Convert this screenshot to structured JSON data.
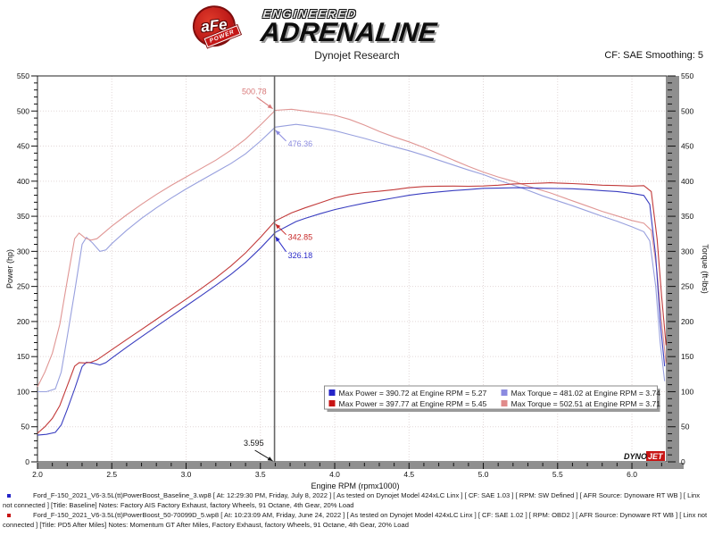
{
  "header": {
    "logo": {
      "badge_text": "aFe",
      "badge_sub": "POWER",
      "line1": "ENGINEERED",
      "line2": "ADRENALINE"
    },
    "subtitle": "Dynojet Research",
    "cf_label": "CF: SAE Smoothing: 5"
  },
  "chart_data": {
    "type": "line",
    "xlabel": "Engine RPM (rpmx1000)",
    "ylabel_left": "Power (hp)",
    "ylabel_right": "Torque (ft-lbs)",
    "xlim": [
      2.0,
      6.234
    ],
    "ylim": [
      0,
      550
    ],
    "x_major_ticks": [
      2.0,
      2.5,
      3.0,
      3.5,
      4.0,
      4.5,
      5.0,
      5.5,
      6.0
    ],
    "x_minor_step": 0.1,
    "y_major_step": 50,
    "y_minor_step": 10,
    "grid": "dotted",
    "grid_color": "#e2d7d7",
    "cursor": {
      "rpm": 3.595,
      "label": "3.595"
    },
    "series": [
      {
        "name": "Baseline Torque",
        "unit": "ft-lbs",
        "color": "#98a0de",
        "x": [
          2.0,
          2.06,
          2.12,
          2.16,
          2.2,
          2.25,
          2.3,
          2.33,
          2.37,
          2.42,
          2.46,
          2.5,
          2.6,
          2.7,
          2.8,
          2.9,
          3.0,
          3.1,
          3.2,
          3.3,
          3.4,
          3.5,
          3.6,
          3.74,
          3.8,
          3.9,
          4.0,
          4.1,
          4.2,
          4.3,
          4.4,
          4.5,
          4.6,
          4.7,
          4.8,
          4.9,
          5.0,
          5.1,
          5.2,
          5.27,
          5.3,
          5.4,
          5.5,
          5.6,
          5.7,
          5.8,
          5.9,
          6.0,
          6.08,
          6.12,
          6.16,
          6.19,
          6.22
        ],
        "y": [
          100,
          100,
          104,
          128,
          178,
          242,
          310,
          320,
          312,
          300,
          302,
          311,
          330,
          347,
          362,
          376,
          389,
          401,
          413,
          425,
          439,
          457,
          477,
          481,
          479.5,
          476,
          472,
          466.5,
          461,
          455,
          449,
          443.5,
          437,
          430,
          423,
          416,
          409.5,
          401.5,
          394.5,
          389.4,
          387,
          379,
          372,
          365,
          357.5,
          350,
          343,
          335,
          328,
          315,
          250,
          170,
          115
        ]
      },
      {
        "name": "PD5 After Miles Torque",
        "unit": "ft-lbs",
        "color": "#e09694",
        "x": [
          2.0,
          2.05,
          2.1,
          2.15,
          2.2,
          2.25,
          2.28,
          2.32,
          2.36,
          2.4,
          2.5,
          2.6,
          2.7,
          2.8,
          2.9,
          3.0,
          3.1,
          3.2,
          3.3,
          3.4,
          3.5,
          3.6,
          3.71,
          3.8,
          3.9,
          4.0,
          4.1,
          4.2,
          4.3,
          4.4,
          4.5,
          4.6,
          4.7,
          4.8,
          4.9,
          5.0,
          5.1,
          5.2,
          5.3,
          5.4,
          5.45,
          5.5,
          5.6,
          5.7,
          5.8,
          5.9,
          6.0,
          6.08,
          6.13,
          6.17,
          6.2,
          6.23
        ],
        "y": [
          107,
          128,
          155,
          196,
          258,
          318,
          326,
          319,
          316,
          318,
          336,
          352,
          367,
          381,
          394,
          406,
          418,
          430,
          444,
          460,
          480,
          501,
          502.5,
          500,
          497,
          494,
          488,
          480,
          471,
          463,
          456,
          448,
          439,
          430,
          421,
          413,
          406,
          400,
          393,
          386.5,
          383.3,
          379.5,
          372,
          364.5,
          357,
          350.5,
          344,
          340,
          330,
          270,
          200,
          140
        ]
      },
      {
        "name": "Baseline Power",
        "unit": "hp",
        "color": "#3a3ec0",
        "x": [
          2.0,
          2.06,
          2.12,
          2.16,
          2.2,
          2.25,
          2.3,
          2.33,
          2.37,
          2.42,
          2.46,
          2.5,
          2.6,
          2.7,
          2.8,
          2.9,
          3.0,
          3.1,
          3.2,
          3.3,
          3.4,
          3.5,
          3.6,
          3.74,
          3.8,
          3.9,
          4.0,
          4.1,
          4.2,
          4.3,
          4.4,
          4.5,
          4.6,
          4.7,
          4.8,
          4.9,
          5.0,
          5.1,
          5.2,
          5.27,
          5.3,
          5.4,
          5.5,
          5.6,
          5.7,
          5.8,
          5.9,
          6.0,
          6.08,
          6.12,
          6.16,
          6.19,
          6.22
        ],
        "y": [
          38.1,
          39.2,
          42.0,
          52.6,
          74.6,
          103.7,
          135.7,
          142.0,
          140.8,
          138.2,
          141.5,
          148.0,
          163.4,
          178.4,
          193.0,
          207.6,
          222.2,
          236.7,
          251.6,
          267.0,
          284.2,
          304.6,
          326.9,
          342.5,
          346.9,
          353.5,
          359.5,
          364.2,
          368.7,
          372.5,
          376.2,
          379.9,
          382.7,
          384.8,
          386.6,
          388.1,
          389.8,
          390.1,
          390.6,
          390.72,
          390.5,
          389.8,
          389.6,
          389.2,
          388.0,
          386.5,
          385.3,
          382.7,
          379.7,
          367.1,
          293.2,
          200.3,
          136.2
        ]
      },
      {
        "name": "PD5 After Miles Power",
        "unit": "hp",
        "color": "#c23a3a",
        "x": [
          2.0,
          2.05,
          2.1,
          2.15,
          2.2,
          2.25,
          2.28,
          2.32,
          2.36,
          2.4,
          2.5,
          2.6,
          2.7,
          2.8,
          2.9,
          3.0,
          3.1,
          3.2,
          3.3,
          3.4,
          3.5,
          3.6,
          3.71,
          3.8,
          3.9,
          4.0,
          4.1,
          4.2,
          4.3,
          4.4,
          4.5,
          4.6,
          4.7,
          4.8,
          4.9,
          5.0,
          5.1,
          5.2,
          5.3,
          5.4,
          5.45,
          5.5,
          5.6,
          5.7,
          5.8,
          5.9,
          6.0,
          6.08,
          6.13,
          6.17,
          6.2,
          6.23
        ],
        "y": [
          40.7,
          50.0,
          62.0,
          80.2,
          108.1,
          136.2,
          141.5,
          141.0,
          142.0,
          145.3,
          159.9,
          174.3,
          188.7,
          203.1,
          217.6,
          231.9,
          246.7,
          262.0,
          279.0,
          297.8,
          319.9,
          343.4,
          355.0,
          361.9,
          369.1,
          376.2,
          380.9,
          383.9,
          385.6,
          387.9,
          390.7,
          392.4,
          392.9,
          393.0,
          392.8,
          393.2,
          394.3,
          396.1,
          396.6,
          397.4,
          397.77,
          397.4,
          396.6,
          395.6,
          394.3,
          393.8,
          393.0,
          393.6,
          385.2,
          317.2,
          236.2,
          166.1
        ]
      }
    ],
    "legend": [
      {
        "color": "#2525c8",
        "label": "Max Power = 390.72 at Engine RPM = 5.27"
      },
      {
        "color": "#c81515",
        "label": "Max Power = 397.77 at Engine RPM = 5.45"
      },
      {
        "color": "#8a8ae0",
        "label": "Max Torque = 481.02 at Engine RPM = 3.74"
      },
      {
        "color": "#e08a8a",
        "label": "Max Torque = 502.51 at Engine RPM = 3.71"
      }
    ],
    "callouts": [
      {
        "text": "500.78",
        "color": "#d87878",
        "rpm": 3.595,
        "value": 500.78,
        "side": "above-left"
      },
      {
        "text": "476.36",
        "color": "#8a8ade",
        "rpm": 3.595,
        "value": 476.36,
        "side": "below-right"
      },
      {
        "text": "342.85",
        "color": "#c82a2a",
        "rpm": 3.595,
        "value": 342.85,
        "side": "below-right"
      },
      {
        "text": "326.18",
        "color": "#2a2ac8",
        "rpm": 3.595,
        "value": 326.18,
        "side": "below-right-far"
      },
      {
        "text": "3.595",
        "color": "#111111",
        "rpm": 3.595,
        "value": 0,
        "side": "axis"
      }
    ],
    "watermark": {
      "part1": "DYNO",
      "part2": "JET"
    }
  },
  "footer": {
    "runs": [
      {
        "bullet_color": "#2525c8",
        "text": "Ford_F-150_2021_V6-3.5L(tt)PowerBoost_Baseline_3.wp8 [ At: 12:29:30 PM, Friday, July 8, 2022 ] [ As tested on Dynojet Model 424xLC Linx ] [ CF: SAE 1.03 ] [ RPM: SW Defined ] [ AFR Source: Dynoware RT WB ] [ Linx not connected ] [Title: Baseline]  Notes: Factory AIS  Factory Exhaust, factory Wheels, 91 Octane, 4th Gear, 20% Load"
      },
      {
        "bullet_color": "#c81515",
        "text": "Ford_F-150_2021_V6-3.5L(tt)PowerBoost_50-70099D_5.wp8 [ At: 10:23:09 AM, Friday, June 24, 2022 ] [ As tested on Dynojet Model 424xLC Linx ] [ CF: SAE 1.02 ] [ RPM: OBD2 ] [ AFR Source: Dynoware RT WB ] [ Linx not connected ] [Title: PD5 After Miles]  Notes: Momentum GT After Miles, Factory Exhaust, factory Wheels, 91 Octane, 4th Gear, 20% Load"
      }
    ]
  }
}
